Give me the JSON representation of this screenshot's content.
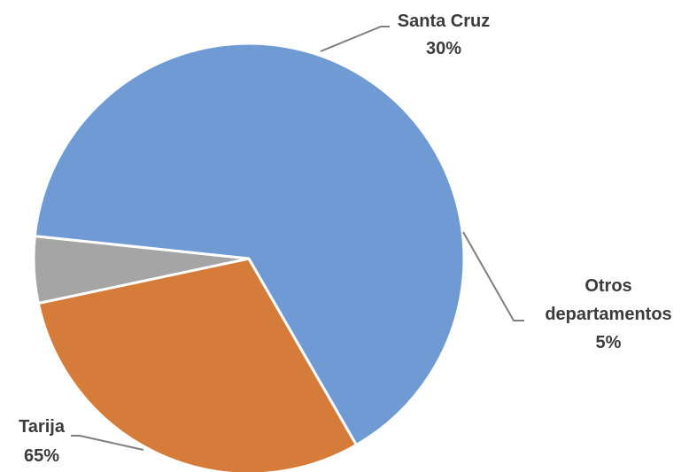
{
  "chart_data": {
    "type": "pie",
    "slices": [
      {
        "label": "Santa Cruz",
        "value": 30,
        "value_label": "30%",
        "color": "#D67C3A"
      },
      {
        "label": "Otros departamentos",
        "label_lines": [
          "Otros",
          "departamentos"
        ],
        "value": 5,
        "value_label": "5%",
        "color": "#A5A5A5"
      },
      {
        "label": "Tarija",
        "value": 65,
        "value_label": "65%",
        "color": "#6F9AD3"
      }
    ],
    "start_angle_deg": 150,
    "direction": "clockwise",
    "label_style": "outside-with-leader-lines",
    "slice_border_color": "#FFFFFF",
    "leader_line_color": "#7F7F7F",
    "label_color": "#3B3B3B",
    "legend": "none"
  }
}
